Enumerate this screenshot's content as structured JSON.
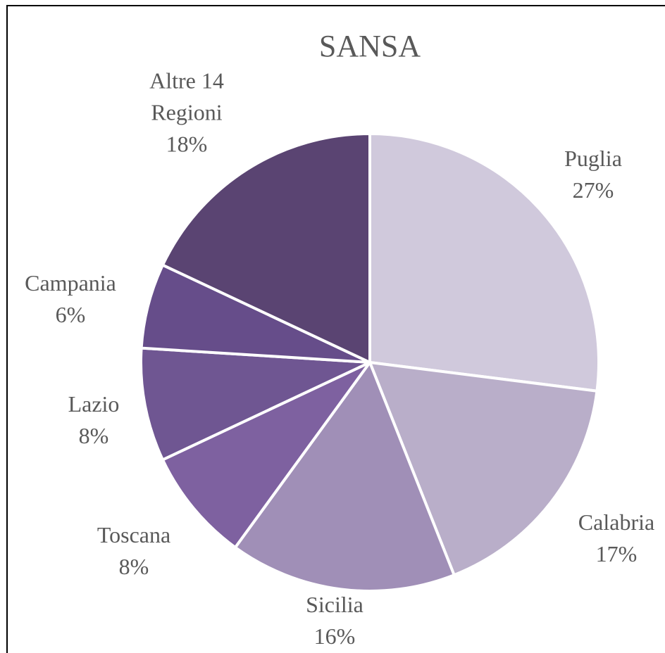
{
  "chart_data": {
    "type": "pie",
    "title": "SANSA",
    "categories": [
      "Puglia",
      "Calabria",
      "Sicilia",
      "Toscana",
      "Lazio",
      "Campania",
      "Altre 14 Regioni"
    ],
    "values": [
      27,
      17,
      16,
      8,
      8,
      6,
      18
    ],
    "value_labels": [
      "27%",
      "17%",
      "16%",
      "8%",
      "8%",
      "6%",
      "18%"
    ],
    "colors": [
      "#d0c9dc",
      "#b9aec9",
      "#a08fb7",
      "#7e61a0",
      "#6f5692",
      "#664d8a",
      "#5a4472"
    ]
  }
}
